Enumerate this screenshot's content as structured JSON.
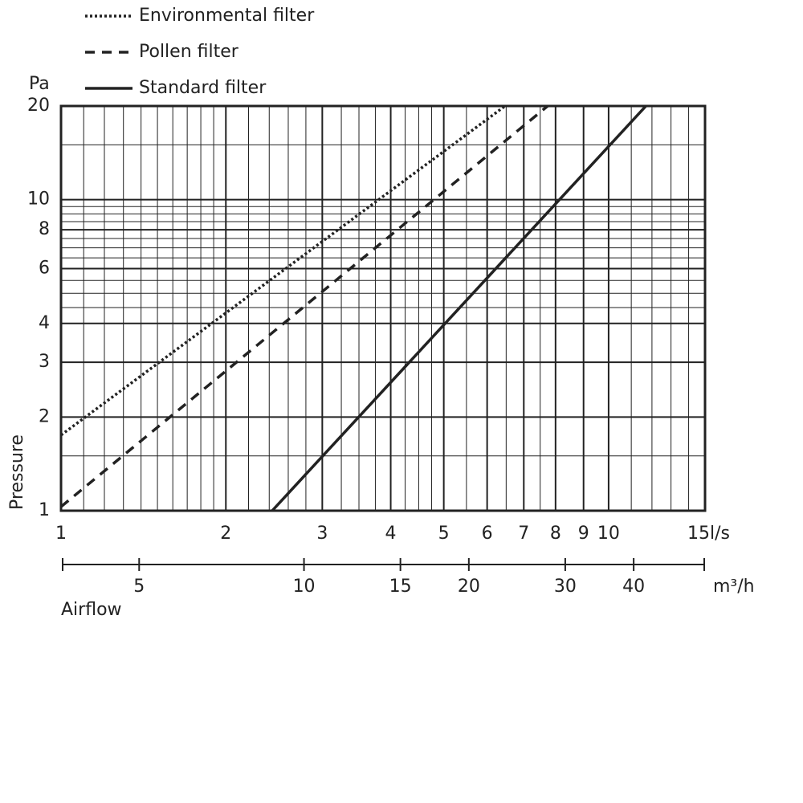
{
  "chart_data": {
    "type": "line",
    "xscale": "log",
    "yscale": "log",
    "xlim": [
      1,
      15
    ],
    "xticks": [
      1,
      2,
      3,
      4,
      5,
      6,
      7,
      8,
      9,
      10,
      15
    ],
    "xunit": "l/s",
    "xminor": [
      1.1,
      1.2,
      1.3,
      1.4,
      1.5,
      1.6,
      1.7,
      1.8,
      1.9,
      2.2,
      2.4,
      2.6,
      2.8,
      3.25,
      3.5,
      3.75,
      4.25,
      4.5,
      4.75,
      5.5,
      6.5,
      7.5,
      11,
      12,
      13,
      14
    ],
    "x2lim": [
      3.6,
      54
    ],
    "x2ticks": [
      5,
      10,
      15,
      20,
      30,
      40
    ],
    "x2unit": "m³/h",
    "xlabel": "Airflow",
    "ylim": [
      1,
      20
    ],
    "yticks": [
      1,
      2,
      3,
      4,
      6,
      8,
      10,
      20
    ],
    "yunit": "Pa",
    "yminor": [
      1.5,
      4.5,
      5,
      5.5,
      6.5,
      7,
      7.5,
      8.5,
      9,
      9.5,
      15
    ],
    "ylabel": "Pressure",
    "series": [
      {
        "name": "Environmental filter",
        "style": "dotted",
        "color": "#222",
        "x": [
          1,
          6.47
        ],
        "values": [
          1.75,
          20
        ]
      },
      {
        "name": "Pollen filter",
        "style": "dashed",
        "color": "#222",
        "x": [
          1,
          7.74
        ],
        "values": [
          1.03,
          20
        ]
      },
      {
        "name": "Standard filter",
        "style": "solid",
        "color": "#222",
        "x": [
          2.43,
          11.7
        ],
        "values": [
          1,
          20
        ]
      }
    ]
  }
}
